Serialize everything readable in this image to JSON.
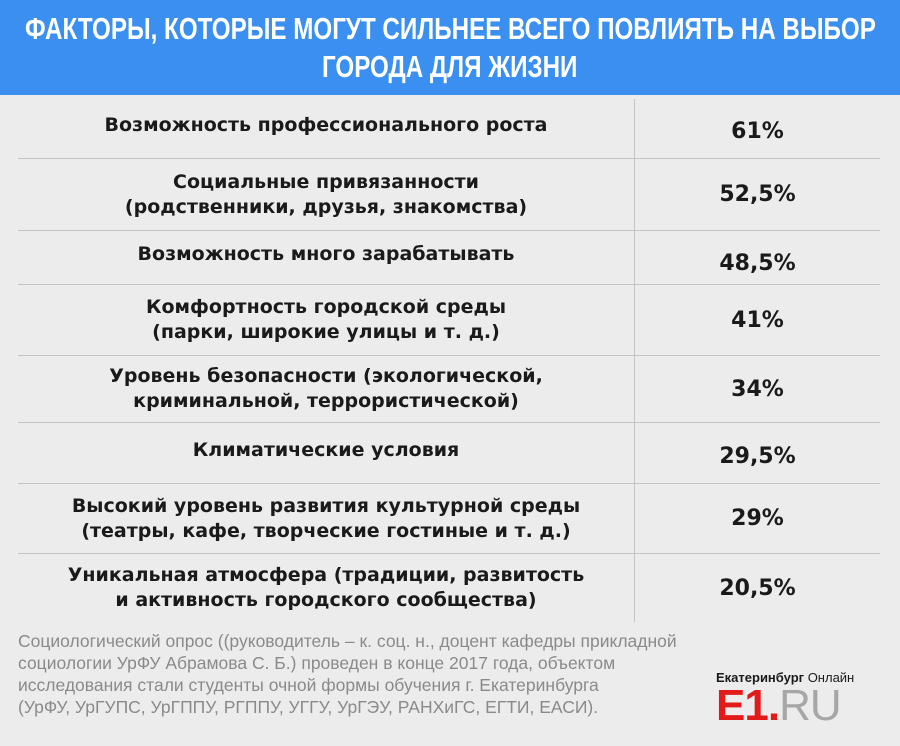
{
  "header": {
    "title_line1": "ФАКТОРЫ, КОТОРЫЕ МОГУТ  СИЛЬНЕЕ ВСЕГО ПОВЛИЯТЬ НА ВЫБОР",
    "title_line2": "ГОРОДА ДЛЯ ЖИЗНИ"
  },
  "rows": [
    {
      "line1": "Возможность профессионального роста",
      "line2": "",
      "value": "61%"
    },
    {
      "line1": "Социальные привязанности",
      "line2": "(родственники, друзья, знакомства)",
      "value": "52,5%"
    },
    {
      "line1": "Возможность много зарабатывать",
      "line2": "",
      "value": "48,5%"
    },
    {
      "line1": "Комфортность городской среды",
      "line2": "(парки, широкие улицы и т. д.)",
      "value": "41%"
    },
    {
      "line1": "Уровень безопасности (экологической,",
      "line2": "криминальной, террористической)",
      "value": "34%"
    },
    {
      "line1": "Климатические условия",
      "line2": "",
      "value": "29,5%"
    },
    {
      "line1": "Высокий уровень развития культурной среды",
      "line2": "(театры, кафе, творческие гостиные и т. д.)",
      "value": "29%"
    },
    {
      "line1": "Уникальная атмосфера (традиции, развитость",
      "line2": "и активность городского сообщества)",
      "value": "20,5%"
    }
  ],
  "footnote": {
    "line1": "Социологический опрос ((руководитель – к. соц. н., доцент кафедры прикладной",
    "line2": "социологии УрФУ Абрамова С. Б.) проведен в конце 2017 года, объектом",
    "line3": "исследования стали студенты очной формы обучения г. Екатеринбурга",
    "line4": "(УрФУ, УрГУПС, УрГППУ, РГППУ, УГГУ, УрГЭУ, РАНХиГС, ЕГТИ, ЕАСИ)."
  },
  "logo": {
    "city": "Екатеринбург",
    "suffix": "Онлайн",
    "brand": "E1",
    "dot": ".",
    "domain": "RU"
  },
  "colors": {
    "header_bg": "#3a8ff0",
    "background": "#ececec",
    "brand_red": "#e21a1a",
    "footnote_gray": "#8a8a8a"
  }
}
